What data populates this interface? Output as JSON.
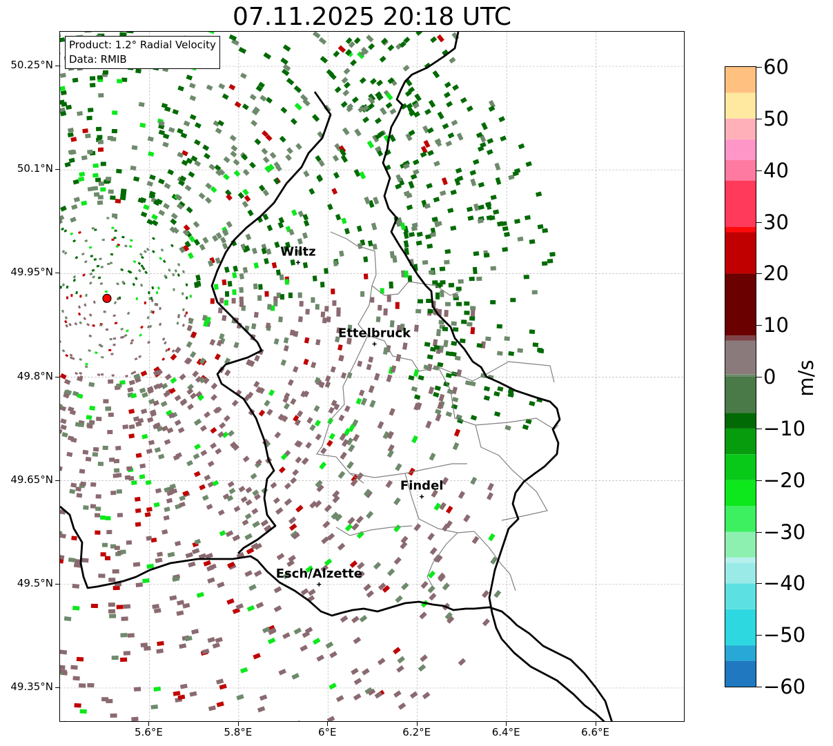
{
  "title": "07.11.2025 20:18 UTC",
  "info": {
    "product": "Product: 1.2° Radial Velocity",
    "data_source": "Data: RMIB"
  },
  "map": {
    "lon_range": [
      5.4,
      6.8
    ],
    "lat_range": [
      49.3,
      50.3
    ],
    "lat_ticks": [
      "50.25°N",
      "50.1°N",
      "49.95°N",
      "49.8°N",
      "49.65°N",
      "49.5°N",
      "49.35°N"
    ],
    "lat_values": [
      50.25,
      50.1,
      49.95,
      49.8,
      49.65,
      49.5,
      49.35
    ],
    "lon_ticks": [
      "5.6°E",
      "5.8°E",
      "6°E",
      "6.2°E",
      "6.4°E",
      "6.6°E"
    ],
    "lon_values": [
      5.6,
      5.8,
      6.0,
      6.2,
      6.4,
      6.6
    ],
    "gridlines": true,
    "radar_site": {
      "lon": 5.505,
      "lat": 49.914
    },
    "cities": [
      {
        "name": "Wiltz",
        "lon": 5.933,
        "lat": 49.966
      },
      {
        "name": "Ettelbruck",
        "lon": 6.104,
        "lat": 49.848
      },
      {
        "name": "Findel",
        "lon": 6.21,
        "lat": 49.627
      },
      {
        "name": "Esch/Alzette",
        "lon": 5.98,
        "lat": 49.5
      }
    ]
  },
  "colorbar": {
    "label": "m/s",
    "ticks": [
      "60",
      "50",
      "40",
      "30",
      "20",
      "10",
      "0",
      "−10",
      "−20",
      "−30",
      "−40",
      "−50",
      "−60"
    ],
    "tick_values": [
      60,
      50,
      40,
      30,
      20,
      10,
      0,
      -10,
      -20,
      -30,
      -40,
      -50,
      -60
    ],
    "range": [
      -60,
      60
    ],
    "stops": [
      {
        "v": -60,
        "c": "#1f78c0"
      },
      {
        "v": -55,
        "c": "#27a8d6"
      },
      {
        "v": -52,
        "c": "#2ed8e0"
      },
      {
        "v": -45,
        "c": "#5ce0e2"
      },
      {
        "v": -40,
        "c": "#9aeae8"
      },
      {
        "v": -36,
        "c": "#b8f0ee"
      },
      {
        "v": -35,
        "c": "#8ef0b0"
      },
      {
        "v": -30,
        "c": "#3cf060"
      },
      {
        "v": -25,
        "c": "#0ce81c"
      },
      {
        "v": -20,
        "c": "#08c818"
      },
      {
        "v": -15,
        "c": "#069c0e"
      },
      {
        "v": -10,
        "c": "#026a04"
      },
      {
        "v": -7,
        "c": "#4a7a48"
      },
      {
        "v": 0,
        "c": "#6e8a6c"
      },
      {
        "v": 0.5,
        "c": "#8a7a7c"
      },
      {
        "v": 7,
        "c": "#7e4448"
      },
      {
        "v": 8,
        "c": "#6a0000"
      },
      {
        "v": 20,
        "c": "#c00000"
      },
      {
        "v": 28,
        "c": "#ff0a0a"
      },
      {
        "v": 29,
        "c": "#ff3a5a"
      },
      {
        "v": 38,
        "c": "#ff7aa0"
      },
      {
        "v": 42,
        "c": "#ff96c8"
      },
      {
        "v": 46,
        "c": "#ffb0b8"
      },
      {
        "v": 50,
        "c": "#ffe8a0"
      },
      {
        "v": 55,
        "c": "#ffc080"
      },
      {
        "v": 60,
        "c": "#ff9a50"
      }
    ]
  },
  "colors": {
    "inbound_dark": "#026a04",
    "inbound_light": "#0ce81c",
    "near_zero_green": "#6e8a6c",
    "near_zero_mauve": "#8a6a70",
    "outbound_red": "#c00000",
    "radar_marker": "#ff0000"
  }
}
